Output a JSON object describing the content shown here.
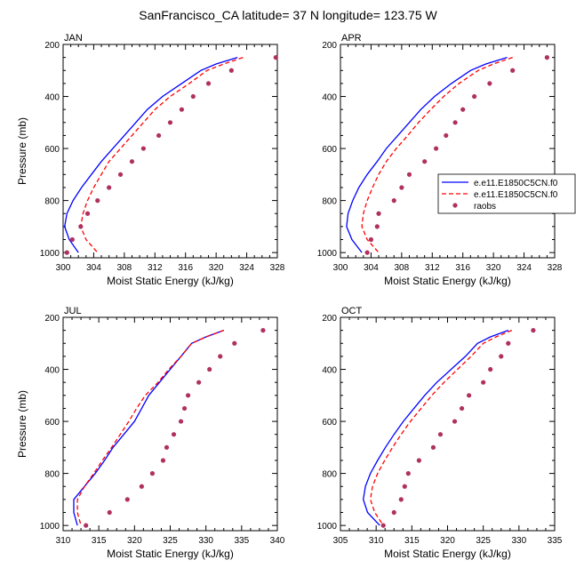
{
  "title": "SanFrancisco_CA  latitude= 37 N longitude= 123.75 W",
  "colors": {
    "model1": "#0000ff",
    "model2": "#ff0000",
    "obs": "#b03060"
  },
  "legend": {
    "entries": [
      "e.e11.E1850C5CN.f0",
      "e.e11.E1850C5CN.f0",
      "raobs"
    ],
    "placement": "right of APR panel"
  },
  "chart_data": [
    {
      "type": "line",
      "panel": "JAN",
      "label": "JAN",
      "xlabel": "Moist Static Energy (kJ/kg)",
      "ylabel": "Pressure (mb)",
      "xlim": [
        300,
        328
      ],
      "ylim": [
        1020,
        200
      ],
      "y_inverted": true,
      "xticks": [
        300,
        304,
        308,
        312,
        316,
        320,
        324,
        328
      ],
      "yticks": [
        200,
        400,
        600,
        800,
        1000
      ],
      "series": [
        {
          "name": "e.e11.E1850C5CN.f0",
          "style": "solid",
          "points": [
            [
              322.8,
              250
            ],
            [
              320,
              275
            ],
            [
              318,
              300
            ],
            [
              315.5,
              350
            ],
            [
              313,
              400
            ],
            [
              311,
              450
            ],
            [
              309.5,
              500
            ],
            [
              308,
              550
            ],
            [
              306.5,
              600
            ],
            [
              305,
              650
            ],
            [
              303.7,
              700
            ],
            [
              302.4,
              750
            ],
            [
              301.3,
              800
            ],
            [
              300.5,
              850
            ],
            [
              300.2,
              900
            ],
            [
              300.8,
              950
            ],
            [
              302,
              1000
            ]
          ]
        },
        {
          "name": "e.e11.E1850C5CN.f0",
          "style": "dash",
          "points": [
            [
              323.5,
              250
            ],
            [
              321,
              275
            ],
            [
              318.8,
              300
            ],
            [
              316.5,
              350
            ],
            [
              314,
              400
            ],
            [
              312,
              450
            ],
            [
              310.5,
              500
            ],
            [
              309,
              550
            ],
            [
              307.5,
              600
            ],
            [
              306,
              650
            ],
            [
              305,
              700
            ],
            [
              304,
              750
            ],
            [
              303.2,
              800
            ],
            [
              302.6,
              850
            ],
            [
              302.3,
              900
            ],
            [
              303,
              950
            ],
            [
              304.5,
              1000
            ]
          ]
        },
        {
          "name": "raobs",
          "style": "marker",
          "points": [
            [
              327.8,
              250
            ],
            [
              322,
              300
            ],
            [
              319,
              350
            ],
            [
              317,
              400
            ],
            [
              315.5,
              450
            ],
            [
              314,
              500
            ],
            [
              312.5,
              550
            ],
            [
              310.5,
              600
            ],
            [
              309,
              650
            ],
            [
              307.5,
              700
            ],
            [
              306,
              750
            ],
            [
              304.5,
              800
            ],
            [
              303.2,
              850
            ],
            [
              302.3,
              900
            ],
            [
              301.2,
              950
            ],
            [
              300.5,
              1000
            ]
          ]
        }
      ]
    },
    {
      "type": "line",
      "panel": "APR",
      "label": "APR",
      "xlabel": "Moist Static Energy (kJ/kg)",
      "ylabel": "",
      "xlim": [
        300,
        328
      ],
      "ylim": [
        1020,
        200
      ],
      "y_inverted": true,
      "xticks": [
        300,
        304,
        308,
        312,
        316,
        320,
        324,
        328
      ],
      "yticks": [
        200,
        400,
        600,
        800,
        1000
      ],
      "series": [
        {
          "name": "e.e11.E1850C5CN.f0",
          "style": "solid",
          "points": [
            [
              321.8,
              250
            ],
            [
              319,
              275
            ],
            [
              317,
              300
            ],
            [
              314.5,
              350
            ],
            [
              312.3,
              400
            ],
            [
              310.5,
              450
            ],
            [
              309,
              500
            ],
            [
              307.5,
              550
            ],
            [
              306,
              600
            ],
            [
              304.8,
              650
            ],
            [
              303.5,
              700
            ],
            [
              302.4,
              750
            ],
            [
              301.6,
              800
            ],
            [
              301,
              850
            ],
            [
              300.8,
              900
            ],
            [
              301.5,
              950
            ],
            [
              302.8,
              1000
            ]
          ]
        },
        {
          "name": "e.e11.E1850C5CN.f0",
          "style": "dash",
          "points": [
            [
              322.5,
              250
            ],
            [
              320,
              275
            ],
            [
              318,
              300
            ],
            [
              315.5,
              350
            ],
            [
              313.5,
              400
            ],
            [
              311.8,
              450
            ],
            [
              310.2,
              500
            ],
            [
              308.8,
              550
            ],
            [
              307.3,
              600
            ],
            [
              306,
              650
            ],
            [
              305,
              700
            ],
            [
              304.2,
              750
            ],
            [
              303.5,
              800
            ],
            [
              303,
              850
            ],
            [
              302.8,
              900
            ],
            [
              303.5,
              950
            ],
            [
              305,
              1000
            ]
          ]
        },
        {
          "name": "raobs",
          "style": "marker",
          "points": [
            [
              327,
              250
            ],
            [
              322.5,
              300
            ],
            [
              319.5,
              350
            ],
            [
              317.5,
              400
            ],
            [
              316,
              450
            ],
            [
              315,
              500
            ],
            [
              313.8,
              550
            ],
            [
              312.5,
              600
            ],
            [
              311,
              650
            ],
            [
              309,
              700
            ],
            [
              308,
              750
            ],
            [
              307,
              800
            ],
            [
              305,
              850
            ],
            [
              304.8,
              900
            ],
            [
              304,
              950
            ],
            [
              303.5,
              1000
            ]
          ]
        }
      ]
    },
    {
      "type": "line",
      "panel": "JUL",
      "label": "JUL",
      "xlabel": "Moist Static Energy (kJ/kg)",
      "ylabel": "Pressure (mb)",
      "xlim": [
        310,
        340
      ],
      "ylim": [
        1020,
        200
      ],
      "y_inverted": true,
      "xticks": [
        310,
        315,
        320,
        325,
        330,
        335,
        340
      ],
      "yticks": [
        200,
        400,
        600,
        800,
        1000
      ],
      "series": [
        {
          "name": "e.e11.E1850C5CN.f0",
          "style": "solid",
          "points": [
            [
              332.5,
              250
            ],
            [
              330,
              275
            ],
            [
              328,
              300
            ],
            [
              326.5,
              350
            ],
            [
              325,
              400
            ],
            [
              323.5,
              450
            ],
            [
              322,
              500
            ],
            [
              321,
              550
            ],
            [
              320,
              600
            ],
            [
              318.5,
              650
            ],
            [
              317,
              700
            ],
            [
              315.8,
              750
            ],
            [
              314.5,
              800
            ],
            [
              313,
              850
            ],
            [
              311.5,
              900
            ],
            [
              311.5,
              950
            ],
            [
              312,
              1000
            ]
          ]
        },
        {
          "name": "e.e11.E1850C5CN.f0",
          "style": "dash",
          "points": [
            [
              332.5,
              250
            ],
            [
              330,
              275
            ],
            [
              328,
              300
            ],
            [
              326.5,
              350
            ],
            [
              324.8,
              400
            ],
            [
              323.3,
              450
            ],
            [
              321.5,
              500
            ],
            [
              320.3,
              550
            ],
            [
              319.2,
              600
            ],
            [
              318,
              650
            ],
            [
              316.8,
              700
            ],
            [
              315.5,
              750
            ],
            [
              314.3,
              800
            ],
            [
              313,
              850
            ],
            [
              312,
              900
            ],
            [
              312,
              950
            ],
            [
              312.5,
              1000
            ]
          ]
        },
        {
          "name": "raobs",
          "style": "marker",
          "points": [
            [
              338,
              250
            ],
            [
              334,
              300
            ],
            [
              332,
              350
            ],
            [
              330.5,
              400
            ],
            [
              329,
              450
            ],
            [
              327.5,
              500
            ],
            [
              327,
              550
            ],
            [
              326.5,
              600
            ],
            [
              325.5,
              650
            ],
            [
              324.5,
              700
            ],
            [
              324,
              750
            ],
            [
              322.5,
              800
            ],
            [
              321,
              850
            ],
            [
              319,
              900
            ],
            [
              316.5,
              950
            ],
            [
              313.2,
              1000
            ]
          ]
        }
      ]
    },
    {
      "type": "line",
      "panel": "OCT",
      "label": "OCT",
      "xlabel": "Moist Static Energy (kJ/kg)",
      "ylabel": "",
      "xlim": [
        305,
        335
      ],
      "ylim": [
        1020,
        200
      ],
      "y_inverted": true,
      "xticks": [
        305,
        310,
        315,
        320,
        325,
        330,
        335
      ],
      "yticks": [
        200,
        400,
        600,
        800,
        1000
      ],
      "series": [
        {
          "name": "e.e11.E1850C5CN.f0",
          "style": "solid",
          "points": [
            [
              328.5,
              250
            ],
            [
              326,
              275
            ],
            [
              324.2,
              300
            ],
            [
              322.5,
              350
            ],
            [
              320.5,
              400
            ],
            [
              318.5,
              450
            ],
            [
              316.8,
              500
            ],
            [
              315.3,
              550
            ],
            [
              313.8,
              600
            ],
            [
              312.5,
              650
            ],
            [
              311.3,
              700
            ],
            [
              310.2,
              750
            ],
            [
              309.2,
              800
            ],
            [
              308.5,
              850
            ],
            [
              308.2,
              900
            ],
            [
              308.8,
              950
            ],
            [
              310.5,
              1000
            ]
          ]
        },
        {
          "name": "e.e11.E1850C5CN.f0",
          "style": "dash",
          "points": [
            [
              329,
              250
            ],
            [
              326.8,
              275
            ],
            [
              325,
              300
            ],
            [
              323.3,
              350
            ],
            [
              321.4,
              400
            ],
            [
              319.5,
              450
            ],
            [
              317.8,
              500
            ],
            [
              316.3,
              550
            ],
            [
              314.8,
              600
            ],
            [
              313.5,
              650
            ],
            [
              312.3,
              700
            ],
            [
              311.2,
              750
            ],
            [
              310.2,
              800
            ],
            [
              309.5,
              850
            ],
            [
              309.2,
              900
            ],
            [
              309.8,
              950
            ],
            [
              311,
              1000
            ]
          ]
        },
        {
          "name": "raobs",
          "style": "marker",
          "points": [
            [
              332,
              250
            ],
            [
              328.5,
              300
            ],
            [
              327.5,
              350
            ],
            [
              326,
              400
            ],
            [
              325,
              450
            ],
            [
              323,
              500
            ],
            [
              322,
              550
            ],
            [
              321,
              600
            ],
            [
              319,
              650
            ],
            [
              318,
              700
            ],
            [
              316,
              750
            ],
            [
              314.5,
              800
            ],
            [
              314,
              850
            ],
            [
              313.5,
              900
            ],
            [
              312.5,
              950
            ],
            [
              311,
              1000
            ]
          ]
        }
      ]
    }
  ]
}
